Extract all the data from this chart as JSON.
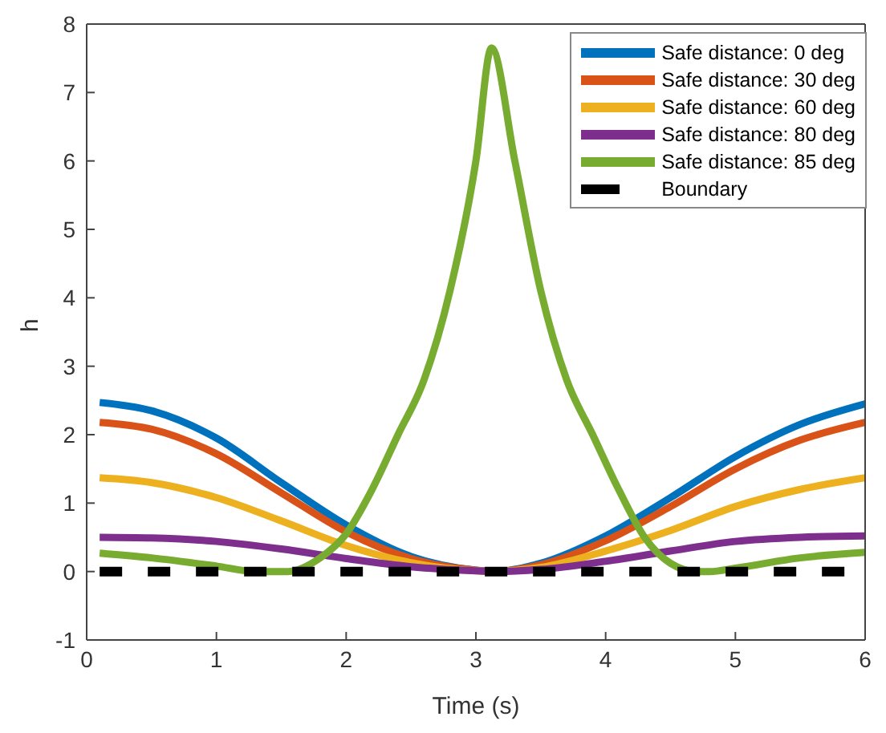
{
  "chart_data": {
    "type": "line",
    "xlabel": "Time (s)",
    "ylabel": "h",
    "xlim": [
      0,
      6
    ],
    "xticks": [
      0,
      1,
      2,
      3,
      4,
      5,
      6
    ],
    "ylim": [
      -1,
      8
    ],
    "yticks": [
      -1,
      0,
      1,
      2,
      3,
      4,
      5,
      6,
      7,
      8
    ],
    "grid": false,
    "legend": "top right",
    "marker": "none",
    "series": [
      {
        "name": "Safe distance: 0 deg",
        "color": "#0072bd",
        "x": [
          0.1,
          0.5,
          1,
          1.5,
          2,
          2.5,
          3,
          3.14,
          3.5,
          4,
          4.5,
          5,
          5.5,
          6
        ],
        "values": [
          2.47,
          2.35,
          1.95,
          1.3,
          0.68,
          0.22,
          0.02,
          0,
          0.12,
          0.52,
          1.08,
          1.68,
          2.15,
          2.45
        ]
      },
      {
        "name": "Safe distance: 30 deg",
        "color": "#d95319",
        "x": [
          0.1,
          0.5,
          1,
          1.5,
          2,
          2.5,
          3,
          3.14,
          3.5,
          4,
          4.5,
          5,
          5.5,
          6
        ],
        "values": [
          2.18,
          2.08,
          1.72,
          1.15,
          0.58,
          0.19,
          0.02,
          0,
          0.1,
          0.45,
          0.95,
          1.5,
          1.92,
          2.18
        ]
      },
      {
        "name": "Safe distance: 60 deg",
        "color": "#edb120",
        "x": [
          0.1,
          0.5,
          1,
          1.5,
          2,
          2.5,
          3,
          3.14,
          3.5,
          4,
          4.5,
          5,
          5.5,
          6
        ],
        "values": [
          1.37,
          1.3,
          1.08,
          0.74,
          0.38,
          0.13,
          0.01,
          0,
          0.06,
          0.3,
          0.6,
          0.95,
          1.2,
          1.37
        ]
      },
      {
        "name": "Safe distance: 80 deg",
        "color": "#7e2f8e",
        "x": [
          0.1,
          0.5,
          1,
          1.5,
          2,
          2.5,
          3,
          3.14,
          3.5,
          4,
          4.5,
          5,
          5.5,
          6
        ],
        "values": [
          0.5,
          0.49,
          0.44,
          0.33,
          0.19,
          0.07,
          0.01,
          0,
          0.03,
          0.15,
          0.3,
          0.44,
          0.5,
          0.52
        ]
      },
      {
        "name": "Safe distance: 85 deg",
        "color": "#77ac30",
        "x": [
          0.1,
          0.5,
          1,
          1.3,
          1.55,
          1.8,
          2,
          2.2,
          2.4,
          2.6,
          2.8,
          3,
          3.12,
          3.3,
          3.5,
          3.7,
          3.9,
          4.1,
          4.3,
          4.5,
          4.7,
          4.8,
          5,
          5.5,
          6
        ],
        "values": [
          0.27,
          0.2,
          0.08,
          0,
          0,
          0.2,
          0.55,
          1.2,
          2.0,
          2.8,
          4.1,
          6.0,
          7.65,
          6.0,
          4.1,
          2.8,
          2.0,
          1.2,
          0.5,
          0.12,
          0,
          0,
          0.05,
          0.2,
          0.28
        ]
      },
      {
        "name": "Boundary",
        "color": "#000000",
        "line_style": "dashed",
        "x": [
          0.1,
          6
        ],
        "values": [
          0,
          0
        ]
      }
    ]
  }
}
